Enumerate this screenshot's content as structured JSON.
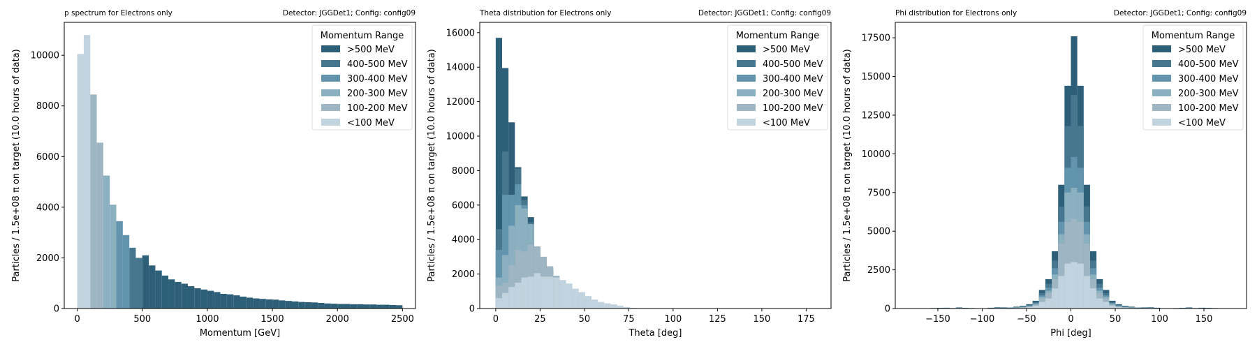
{
  "figure": {
    "background": "#ffffff"
  },
  "colors": {
    ">500 MeV": "#2e5f78",
    "400-500 MeV": "#47768f",
    "300-400 MeV": "#6394ad",
    "200-300 MeV": "#8bb0c0",
    "100-200 MeV": "#9eb5c3",
    "<100 MeV": "#c1d3de"
  },
  "chart_data": [
    {
      "type": "histogram",
      "title": "p spectrum for Electrons only",
      "subtitle": "Detector: JGGDet1; Config: config09",
      "xlabel": "Momentum [GeV]",
      "ylabel": "Particles / 1.5e+08 π on target (10.0 hours of data)",
      "xlim": [
        -100,
        2600
      ],
      "ylim": [
        0,
        11300
      ],
      "xticks": [
        0,
        500,
        1000,
        1500,
        2000,
        2500
      ],
      "yticks": [
        0,
        2000,
        4000,
        6000,
        8000,
        10000
      ],
      "bin_width": 50,
      "legend_title": "Momentum Range",
      "legend_position": "top-right",
      "series": [
        {
          "name": ">500 MeV",
          "x": [
            500,
            550,
            600,
            650,
            700,
            750,
            800,
            850,
            900,
            950,
            1000,
            1050,
            1100,
            1150,
            1200,
            1250,
            1300,
            1350,
            1400,
            1450,
            1500,
            1550,
            1600,
            1650,
            1700,
            1750,
            1800,
            1850,
            1900,
            1950,
            2000,
            2050,
            2100,
            2150,
            2200,
            2250,
            2300,
            2350,
            2400,
            2450
          ],
          "values": [
            2100,
            1700,
            1500,
            1300,
            1150,
            1050,
            980,
            880,
            800,
            750,
            700,
            650,
            580,
            560,
            520,
            470,
            430,
            400,
            380,
            360,
            350,
            320,
            300,
            280,
            260,
            250,
            240,
            220,
            200,
            190,
            180,
            180,
            170,
            170,
            160,
            160,
            150,
            150,
            140,
            130
          ]
        },
        {
          "name": "400-500 MeV",
          "x": [
            400,
            450
          ],
          "values": [
            2400,
            2000
          ]
        },
        {
          "name": "300-400 MeV",
          "x": [
            300,
            350
          ],
          "values": [
            3450,
            2900
          ]
        },
        {
          "name": "200-300 MeV",
          "x": [
            200,
            250
          ],
          "values": [
            5250,
            4100
          ]
        },
        {
          "name": "100-200 MeV",
          "x": [
            100,
            150
          ],
          "values": [
            8450,
            6550
          ]
        },
        {
          "name": "<100 MeV",
          "x": [
            0,
            50
          ],
          "values": [
            10050,
            10800
          ]
        }
      ]
    },
    {
      "type": "histogram",
      "title": "Theta distribution for Electrons only",
      "subtitle": "Detector: JGGDet1; Config: config09",
      "xlabel": "Theta [deg]",
      "ylabel": "Particles / 1.5e+08 π on target (10.0 hours of data)",
      "xlim": [
        -9,
        189
      ],
      "ylim": [
        0,
        16600
      ],
      "xticks": [
        0,
        25,
        50,
        75,
        100,
        125,
        150,
        175
      ],
      "yticks": [
        0,
        2000,
        4000,
        6000,
        8000,
        10000,
        12000,
        14000,
        16000
      ],
      "bin_width": 3.6,
      "stacked_display": "overlaid",
      "legend_title": "Momentum Range",
      "legend_position": "top-right",
      "series": [
        {
          "name": ">500 MeV",
          "values": [
            15700,
            13950,
            10800,
            8200,
            6500,
            5300,
            3000,
            2700,
            2300,
            1800,
            1300,
            1100,
            850,
            500,
            300,
            200,
            120,
            80,
            50,
            30,
            20,
            10,
            0,
            0,
            0,
            0,
            0,
            0,
            0,
            0,
            0,
            0,
            0,
            0,
            0,
            0,
            0,
            0,
            0,
            0,
            0,
            0,
            0,
            0,
            0,
            0,
            0,
            0,
            0,
            0
          ]
        },
        {
          "name": "400-500 MeV",
          "values": [
            4600,
            9100,
            6500,
            8100,
            6300,
            5000,
            2900,
            2500,
            2200,
            1700,
            1200,
            1000,
            800,
            450,
            280,
            180,
            110,
            70,
            40,
            25,
            15,
            5,
            0,
            0,
            0,
            0,
            0,
            0,
            0,
            0,
            0,
            0,
            0,
            0,
            0,
            0,
            0,
            0,
            0,
            0,
            0,
            0,
            0,
            0,
            0,
            0,
            0,
            0,
            0,
            0
          ]
        },
        {
          "name": "300-400 MeV",
          "values": [
            3400,
            6600,
            6600,
            7200,
            6000,
            4900,
            2900,
            2500,
            2100,
            1700,
            1200,
            1000,
            800,
            450,
            280,
            180,
            110,
            70,
            40,
            25,
            15,
            5,
            0,
            0,
            0,
            0,
            0,
            0,
            0,
            0,
            0,
            0,
            0,
            0,
            0,
            0,
            0,
            0,
            0,
            0,
            0,
            0,
            0,
            0,
            0,
            0,
            0,
            0,
            0,
            0
          ]
        },
        {
          "name": "200-300 MeV",
          "values": [
            1800,
            3100,
            4800,
            6000,
            5800,
            4900,
            3600,
            3000,
            2400,
            1800,
            1300,
            1000,
            800,
            450,
            280,
            180,
            110,
            70,
            40,
            25,
            15,
            5,
            0,
            0,
            0,
            0,
            0,
            0,
            0,
            0,
            0,
            0,
            0,
            0,
            0,
            0,
            0,
            0,
            0,
            0,
            0,
            0,
            0,
            0,
            0,
            0,
            0,
            0,
            0,
            0
          ]
        },
        {
          "name": "100-200 MeV",
          "values": [
            1300,
            1500,
            2500,
            3400,
            3300,
            3700,
            3600,
            3000,
            2450,
            1900,
            1400,
            1100,
            850,
            500,
            300,
            200,
            120,
            80,
            50,
            30,
            20,
            10,
            0,
            0,
            0,
            0,
            0,
            0,
            0,
            0,
            0,
            0,
            0,
            0,
            0,
            0,
            0,
            0,
            0,
            0,
            0,
            0,
            0,
            0,
            0,
            0,
            0,
            0,
            0,
            0
          ]
        },
        {
          "name": "<100 MeV",
          "values": [
            600,
            900,
            1250,
            1500,
            1800,
            1850,
            2050,
            1850,
            1850,
            1800,
            1650,
            1450,
            1150,
            950,
            720,
            520,
            380,
            300,
            240,
            160,
            90,
            40,
            20,
            10,
            5,
            0,
            0,
            0,
            0,
            0,
            0,
            0,
            0,
            0,
            0,
            0,
            0,
            0,
            0,
            0,
            0,
            0,
            0,
            0,
            0,
            0,
            0,
            0,
            0,
            0
          ]
        }
      ]
    },
    {
      "type": "histogram",
      "title": "Phi distribution for Electrons only",
      "subtitle": "Detector: JGGDet1; Config: config09",
      "xlabel": "Phi [deg]",
      "ylabel": "Particles / 1.5e+08 π on target (10.0 hours of data)",
      "xlim": [
        -198,
        198
      ],
      "ylim": [
        0,
        18500
      ],
      "xticks": [
        -150,
        -100,
        -50,
        0,
        50,
        100,
        150
      ],
      "yticks": [
        0,
        2500,
        5000,
        7500,
        10000,
        12500,
        15000,
        17500
      ],
      "bin_width": 7.2,
      "stacked_display": "overlaid",
      "legend_title": "Momentum Range",
      "legend_position": "top-right",
      "series": [
        {
          "name": ">500 MeV",
          "values": [
            0,
            0,
            0,
            30,
            40,
            50,
            30,
            70,
            40,
            30,
            20,
            20,
            50,
            80,
            70,
            60,
            120,
            170,
            280,
            500,
            1200,
            1900,
            3700,
            8000,
            14400,
            17600,
            14400,
            8000,
            3700,
            1900,
            1200,
            500,
            280,
            170,
            120,
            60,
            70,
            80,
            50,
            20,
            20,
            30,
            40,
            70,
            30,
            50,
            40,
            30,
            0,
            0
          ]
        },
        {
          "name": "400-500 MeV",
          "values": [
            0,
            0,
            0,
            20,
            30,
            40,
            20,
            50,
            30,
            20,
            15,
            15,
            40,
            60,
            50,
            50,
            100,
            140,
            230,
            420,
            1000,
            1600,
            3100,
            6600,
            11800,
            13800,
            11800,
            6600,
            3100,
            1600,
            1000,
            420,
            230,
            140,
            100,
            50,
            50,
            60,
            40,
            15,
            15,
            20,
            30,
            50,
            20,
            40,
            30,
            20,
            0,
            0
          ]
        },
        {
          "name": "300-400 MeV",
          "values": [
            0,
            0,
            0,
            15,
            20,
            30,
            15,
            40,
            20,
            15,
            10,
            10,
            30,
            50,
            40,
            40,
            80,
            110,
            190,
            350,
            850,
            1350,
            2600,
            5600,
            9100,
            9800,
            9100,
            5600,
            2600,
            1350,
            850,
            350,
            190,
            110,
            80,
            40,
            40,
            50,
            30,
            10,
            10,
            15,
            20,
            40,
            15,
            30,
            20,
            15,
            0,
            0
          ]
        },
        {
          "name": "200-300 MeV",
          "values": [
            0,
            0,
            0,
            10,
            15,
            20,
            10,
            30,
            15,
            10,
            8,
            8,
            20,
            40,
            30,
            30,
            60,
            90,
            160,
            300,
            750,
            1150,
            2200,
            4800,
            7500,
            7800,
            7500,
            4800,
            2200,
            1150,
            750,
            300,
            160,
            90,
            60,
            30,
            30,
            40,
            20,
            8,
            8,
            10,
            15,
            30,
            10,
            20,
            15,
            10,
            0,
            0
          ]
        },
        {
          "name": "100-200 MeV",
          "values": [
            0,
            0,
            0,
            8,
            10,
            15,
            8,
            20,
            10,
            8,
            6,
            6,
            15,
            30,
            20,
            20,
            50,
            70,
            130,
            250,
            650,
            1000,
            1900,
            4200,
            5600,
            5800,
            5600,
            4200,
            1900,
            1000,
            650,
            250,
            130,
            70,
            50,
            20,
            20,
            30,
            15,
            6,
            6,
            8,
            10,
            20,
            8,
            15,
            10,
            8,
            0,
            0
          ]
        },
        {
          "name": "<100 MeV",
          "values": [
            0,
            0,
            0,
            5,
            5,
            10,
            5,
            10,
            5,
            5,
            3,
            3,
            10,
            20,
            10,
            10,
            30,
            50,
            90,
            180,
            420,
            650,
            1300,
            2100,
            2900,
            3000,
            2900,
            2100,
            1300,
            650,
            420,
            180,
            90,
            50,
            30,
            10,
            10,
            20,
            10,
            3,
            3,
            5,
            5,
            10,
            5,
            10,
            5,
            5,
            0,
            0
          ]
        }
      ]
    }
  ]
}
